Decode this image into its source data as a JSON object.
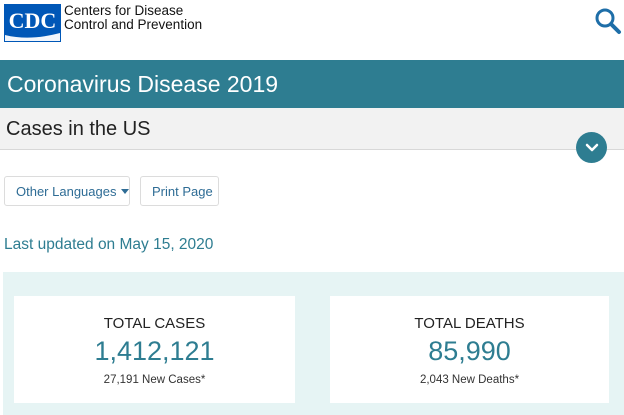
{
  "header": {
    "logo_text": "CDC",
    "org_line1": "Centers for Disease",
    "org_line2": "Control and Prevention",
    "search_icon": "search-icon"
  },
  "banner": {
    "title": "Coronavirus Disease 2019"
  },
  "subnav": {
    "title": "Cases in the US",
    "toggle_icon": "chevron-down-icon"
  },
  "actions": {
    "languages_label": "Other Languages",
    "print_label": "Print Page"
  },
  "last_updated": "Last updated on May 15, 2020",
  "stats": {
    "cases": {
      "label": "TOTAL CASES",
      "value": "1,412,121",
      "sub": "27,191 New Cases*"
    },
    "deaths": {
      "label": "TOTAL DEATHS",
      "value": "85,990",
      "sub": "2,043 New Deaths*"
    }
  },
  "colors": {
    "accent": "#2e7d91",
    "logo_blue": "#0057b7",
    "panel_bg": "#e6f4f4",
    "link": "#2e6c95"
  }
}
